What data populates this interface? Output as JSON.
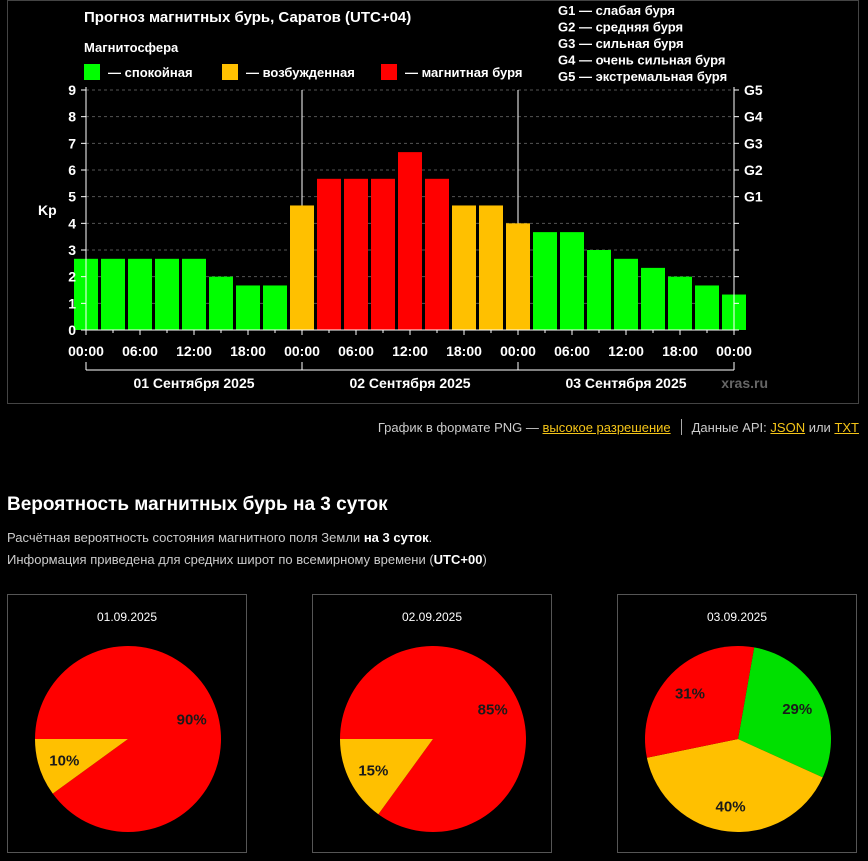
{
  "chart_title": "Прогноз магнитных бурь, Саратов (UTC+04)",
  "legend": {
    "title": "Магнитосфера",
    "items": [
      {
        "label": "— спокойная",
        "color": "#00ff00"
      },
      {
        "label": "— возбужденная",
        "color": "#ffc000"
      },
      {
        "label": "— магнитная буря",
        "color": "#ff0000"
      }
    ]
  },
  "g_scale": [
    "G1 — слабая буря",
    "G2 — средняя буря",
    "G3 — сильная буря",
    "G4 — очень сильная буря",
    "G5 — экстремальная буря"
  ],
  "watermark": "xras.ru",
  "chart_data": [
    {
      "type": "bar",
      "title": "Прогноз магнитных бурь, Саратов (UTC+04)",
      "ylabel": "Kp",
      "ylim": [
        0,
        9
      ],
      "y_ticks": [
        "0",
        "1",
        "2",
        "3",
        "4",
        "5",
        "6",
        "7",
        "8",
        "9"
      ],
      "right_ticks": [
        {
          "label": "G1",
          "kp": 5
        },
        {
          "label": "G2",
          "kp": 6
        },
        {
          "label": "G3",
          "kp": 7
        },
        {
          "label": "G4",
          "kp": 8
        },
        {
          "label": "G5",
          "kp": 9
        }
      ],
      "x_tick_labels": [
        "00:00",
        "06:00",
        "12:00",
        "18:00",
        "00:00",
        "06:00",
        "12:00",
        "18:00",
        "00:00",
        "06:00",
        "12:00",
        "18:00",
        "00:00"
      ],
      "days": [
        "01 Сентября 2025",
        "02 Сентября 2025",
        "03 Сентября 2025"
      ],
      "grid": true,
      "values": [
        2.67,
        2.67,
        2.67,
        2.67,
        2.67,
        2.0,
        1.67,
        1.67,
        4.67,
        5.67,
        5.67,
        5.67,
        6.67,
        5.67,
        4.67,
        4.67,
        4.0,
        3.67,
        3.67,
        3.0,
        2.67,
        2.33,
        2.0,
        1.67,
        1.33
      ],
      "colors": [
        "#00ff00",
        "#00ff00",
        "#00ff00",
        "#00ff00",
        "#00ff00",
        "#00ff00",
        "#00ff00",
        "#00ff00",
        "#ffc000",
        "#ff0000",
        "#ff0000",
        "#ff0000",
        "#ff0000",
        "#ff0000",
        "#ffc000",
        "#ffc000",
        "#ffc000",
        "#00ff00",
        "#00ff00",
        "#00ff00",
        "#00ff00",
        "#00ff00",
        "#00ff00",
        "#00ff00",
        "#00ff00"
      ]
    },
    {
      "type": "pie",
      "title": "01.09.2025",
      "slices": [
        {
          "label": "90%",
          "value": 90,
          "color": "#ff0000"
        },
        {
          "label": "10%",
          "value": 10,
          "color": "#ffc000"
        }
      ]
    },
    {
      "type": "pie",
      "title": "02.09.2025",
      "slices": [
        {
          "label": "85%",
          "value": 85,
          "color": "#ff0000"
        },
        {
          "label": "15%",
          "value": 15,
          "color": "#ffc000"
        }
      ]
    },
    {
      "type": "pie",
      "title": "03.09.2025",
      "slices": [
        {
          "label": "29%",
          "value": 29,
          "color": "#00e000"
        },
        {
          "label": "40%",
          "value": 40,
          "color": "#ffc000"
        },
        {
          "label": "31%",
          "value": 31,
          "color": "#ff0000"
        }
      ]
    }
  ],
  "links": {
    "png_text": "График в формате PNG —",
    "png_link": "высокое разрешение",
    "api_text": "Данные API:",
    "json_link": "JSON",
    "or_text": "или",
    "txt_link": "TXT"
  },
  "probability": {
    "title": "Вероятность магнитных бурь на 3 суток",
    "desc1_a": "Расчётная вероятность состояния магнитного поля Земли",
    "desc1_b": "на 3 суток",
    "desc1_c": ".",
    "desc2_a": "Информация приведена для средних широт по всемирному времени (",
    "desc2_b": "UTC+00",
    "desc2_c": ")"
  }
}
